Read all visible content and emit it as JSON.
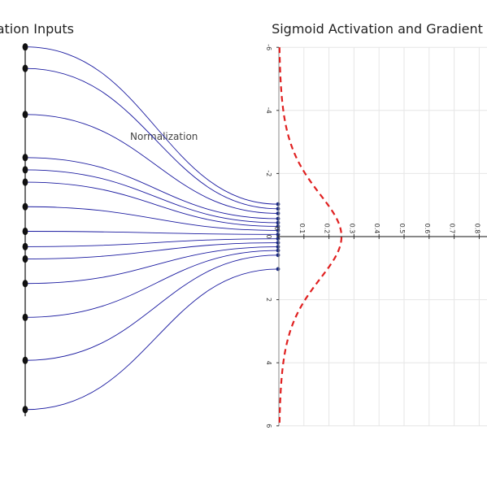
{
  "chart_data": [
    {
      "type": "line",
      "title": "Activation Inputs",
      "annotation": "Normalization",
      "input_values": [
        -6,
        -5.3,
        -3.8,
        -2.4,
        -2.0,
        -1.6,
        -0.8,
        0.0,
        0.5,
        0.9,
        1.7,
        2.8,
        4.2,
        5.8
      ],
      "normalized_values": [
        -1.05,
        -0.9,
        -0.75,
        -0.58,
        -0.45,
        -0.33,
        -0.2,
        -0.07,
        0.07,
        0.2,
        0.33,
        0.45,
        0.6,
        1.05
      ],
      "colors": {
        "lines": "#1a1aa0",
        "nodes": "#111111",
        "end_nodes": "#1a2a80"
      }
    },
    {
      "type": "line",
      "title": "Sigmoid Activation and Gradient",
      "y_ticks": [
        -6,
        -4,
        -2,
        0,
        2,
        4,
        6
      ],
      "x_ticks": [
        0,
        0.1,
        0.2,
        0.3,
        0.4,
        0.5,
        0.6,
        0.7,
        0.8
      ],
      "series": [
        {
          "style": "solid",
          "color": "#1f1fff",
          "function": "sigmoid"
        },
        {
          "style": "dashed",
          "color": "#e02020",
          "function": "sigmoid_gradient"
        }
      ],
      "ylim": [
        -6,
        6
      ],
      "xlim": [
        0,
        0.82
      ],
      "grid": true
    }
  ]
}
